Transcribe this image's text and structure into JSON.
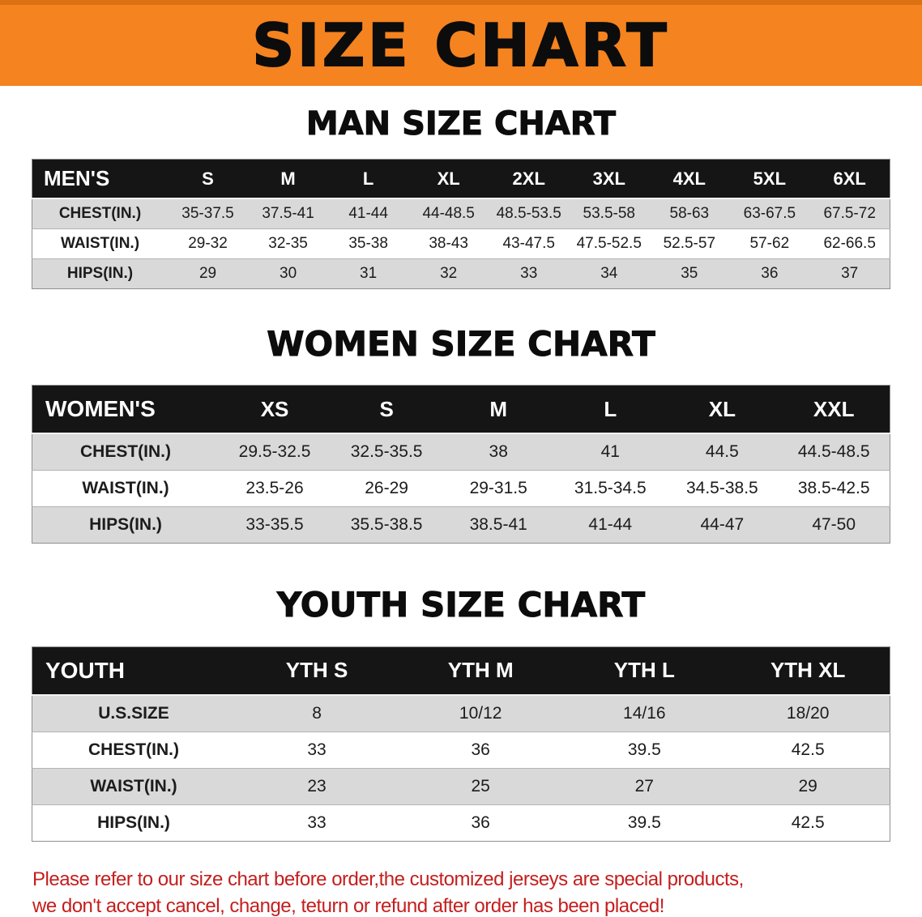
{
  "banner": {
    "title": "SIZE CHART"
  },
  "colors": {
    "banner_bg": "#f5831f",
    "banner_edge": "#db7111",
    "header_bg": "#151515",
    "row_alt": "#d9d9d9",
    "notice": "#c41e1e"
  },
  "sections": [
    {
      "key": "men",
      "heading": "MAN SIZE CHART",
      "table": {
        "header": [
          "MEN'S",
          "S",
          "M",
          "L",
          "XL",
          "2XL",
          "3XL",
          "4XL",
          "5XL",
          "6XL"
        ],
        "rows": [
          [
            "CHEST(IN.)",
            "35-37.5",
            "37.5-41",
            "41-44",
            "44-48.5",
            "48.5-53.5",
            "53.5-58",
            "58-63",
            "63-67.5",
            "67.5-72"
          ],
          [
            "WAIST(IN.)",
            "29-32",
            "32-35",
            "35-38",
            "38-43",
            "43-47.5",
            "47.5-52.5",
            "52.5-57",
            "57-62",
            "62-66.5"
          ],
          [
            "HIPS(IN.)",
            "29",
            "30",
            "31",
            "32",
            "33",
            "34",
            "35",
            "36",
            "37"
          ]
        ]
      }
    },
    {
      "key": "women",
      "heading": "WOMEN SIZE CHART",
      "table": {
        "header": [
          "WOMEN'S",
          "XS",
          "S",
          "M",
          "L",
          "XL",
          "XXL"
        ],
        "rows": [
          [
            "CHEST(IN.)",
            "29.5-32.5",
            "32.5-35.5",
            "38",
            "41",
            "44.5",
            "44.5-48.5"
          ],
          [
            "WAIST(IN.)",
            "23.5-26",
            "26-29",
            "29-31.5",
            "31.5-34.5",
            "34.5-38.5",
            "38.5-42.5"
          ],
          [
            "HIPS(IN.)",
            "33-35.5",
            "35.5-38.5",
            "38.5-41",
            "41-44",
            "44-47",
            "47-50"
          ]
        ]
      }
    },
    {
      "key": "youth",
      "heading": "YOUTH SIZE CHART",
      "table": {
        "header": [
          "YOUTH",
          "YTH S",
          "YTH M",
          "YTH L",
          "YTH XL"
        ],
        "rows": [
          [
            "U.S.SIZE",
            "8",
            "10/12",
            "14/16",
            "18/20"
          ],
          [
            "CHEST(IN.)",
            "33",
            "36",
            "39.5",
            "42.5"
          ],
          [
            "WAIST(IN.)",
            "23",
            "25",
            "27",
            "29"
          ],
          [
            "HIPS(IN.)",
            "33",
            "36",
            "39.5",
            "42.5"
          ]
        ]
      }
    }
  ],
  "notice": {
    "lines": [
      "Please refer to our size chart before order,the customized jerseys are special products,",
      "we don't accept cancel, change, teturn or refund after order has been placed!"
    ]
  }
}
